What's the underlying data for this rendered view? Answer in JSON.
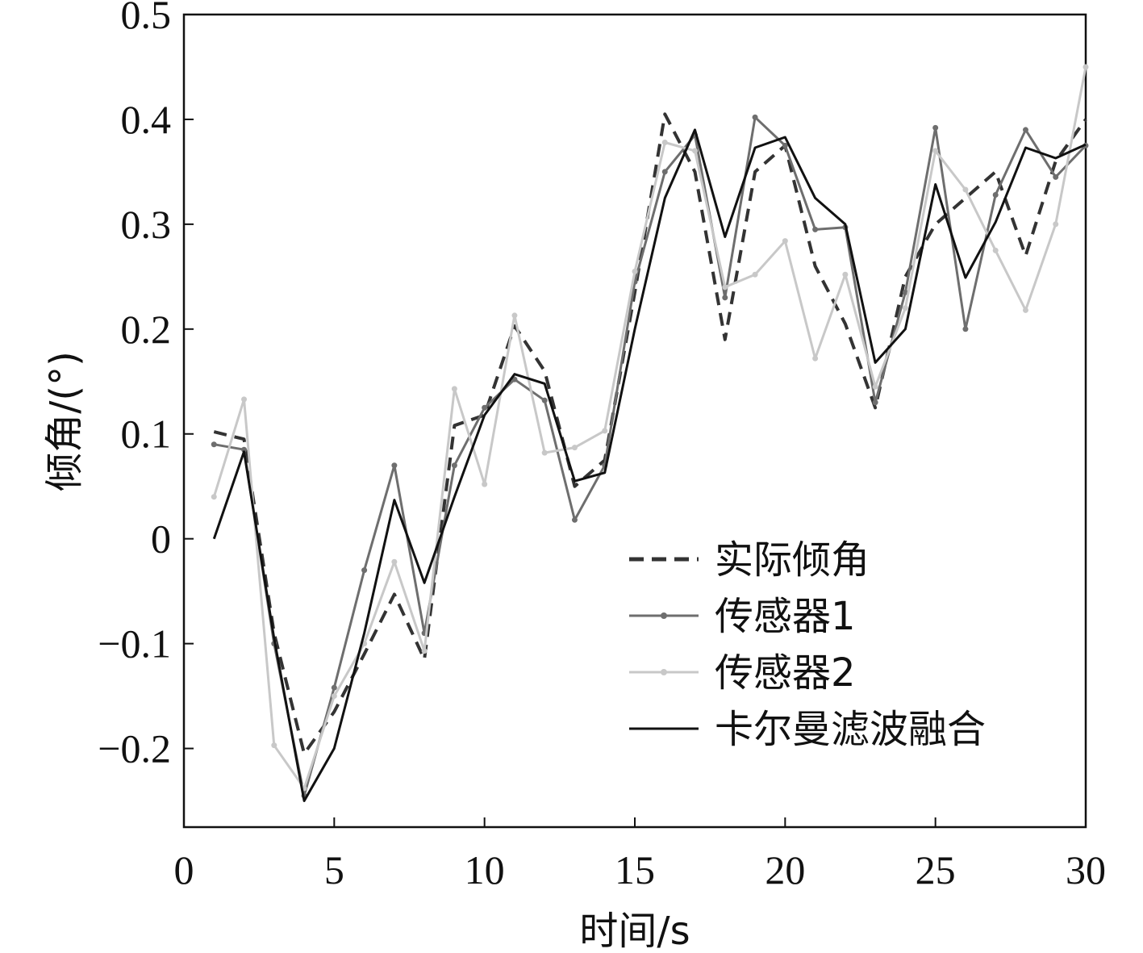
{
  "chart_data": {
    "type": "line",
    "title": "",
    "xlabel": "时间/s",
    "ylabel": "倾角/(°)",
    "xlim": [
      0,
      30
    ],
    "ylim": [
      -0.275,
      0.5
    ],
    "x_ticks": [
      0,
      5,
      10,
      15,
      20,
      25,
      30
    ],
    "x_tick_labels": [
      "0",
      "5",
      "10",
      "15",
      "20",
      "25",
      "30"
    ],
    "y_ticks": [
      -0.2,
      -0.1,
      0,
      0.1,
      0.2,
      0.3,
      0.4,
      0.5
    ],
    "y_tick_labels": [
      "−0.2",
      "−0.1",
      "0",
      "0.1",
      "0.2",
      "0.3",
      "0.4",
      "0.5"
    ],
    "grid": false,
    "legend_position": "lower-right",
    "x": [
      1,
      2,
      3,
      4,
      5,
      6,
      7,
      8,
      9,
      10,
      11,
      12,
      13,
      14,
      15,
      16,
      17,
      18,
      19,
      20,
      21,
      22,
      23,
      24,
      25,
      26,
      27,
      28,
      29,
      30
    ],
    "series": [
      {
        "name": "实际倾角",
        "color": "#333333",
        "style": "dashed",
        "marker": false,
        "values": [
          0.102,
          0.095,
          -0.09,
          -0.205,
          -0.165,
          -0.11,
          -0.053,
          -0.115,
          0.108,
          0.118,
          0.203,
          0.16,
          0.05,
          0.075,
          0.235,
          0.405,
          0.35,
          0.19,
          0.35,
          0.375,
          0.26,
          0.205,
          0.125,
          0.25,
          0.3,
          0.325,
          0.35,
          0.27,
          0.36,
          0.4
        ]
      },
      {
        "name": "传感器1",
        "color": "#6e6e6e",
        "style": "solid",
        "marker": true,
        "values": [
          0.09,
          0.085,
          -0.1,
          -0.245,
          -0.142,
          -0.03,
          0.07,
          -0.09,
          0.07,
          0.125,
          0.152,
          0.132,
          0.018,
          0.07,
          0.245,
          0.35,
          0.385,
          0.23,
          0.402,
          0.375,
          0.295,
          0.297,
          0.13,
          0.235,
          0.392,
          0.2,
          0.328,
          0.39,
          0.345,
          0.375
        ]
      },
      {
        "name": "传感器2",
        "color": "#c8c8c8",
        "style": "solid",
        "marker": true,
        "values": [
          0.04,
          0.133,
          -0.197,
          -0.238,
          -0.15,
          -0.1,
          -0.022,
          -0.107,
          0.143,
          0.052,
          0.213,
          0.082,
          0.087,
          0.103,
          0.255,
          0.378,
          0.37,
          0.24,
          0.252,
          0.284,
          0.172,
          0.252,
          0.145,
          0.22,
          0.37,
          0.333,
          0.275,
          0.218,
          0.3,
          0.45
        ]
      },
      {
        "name": "卡尔曼滤波融合",
        "color": "#111111",
        "style": "solid",
        "marker": false,
        "values": [
          0.0,
          0.083,
          -0.095,
          -0.25,
          -0.2,
          -0.09,
          0.037,
          -0.042,
          0.04,
          0.118,
          0.157,
          0.148,
          0.055,
          0.063,
          0.2,
          0.325,
          0.39,
          0.288,
          0.373,
          0.383,
          0.325,
          0.3,
          0.168,
          0.2,
          0.338,
          0.249,
          0.302,
          0.373,
          0.363,
          0.376
        ]
      }
    ]
  }
}
